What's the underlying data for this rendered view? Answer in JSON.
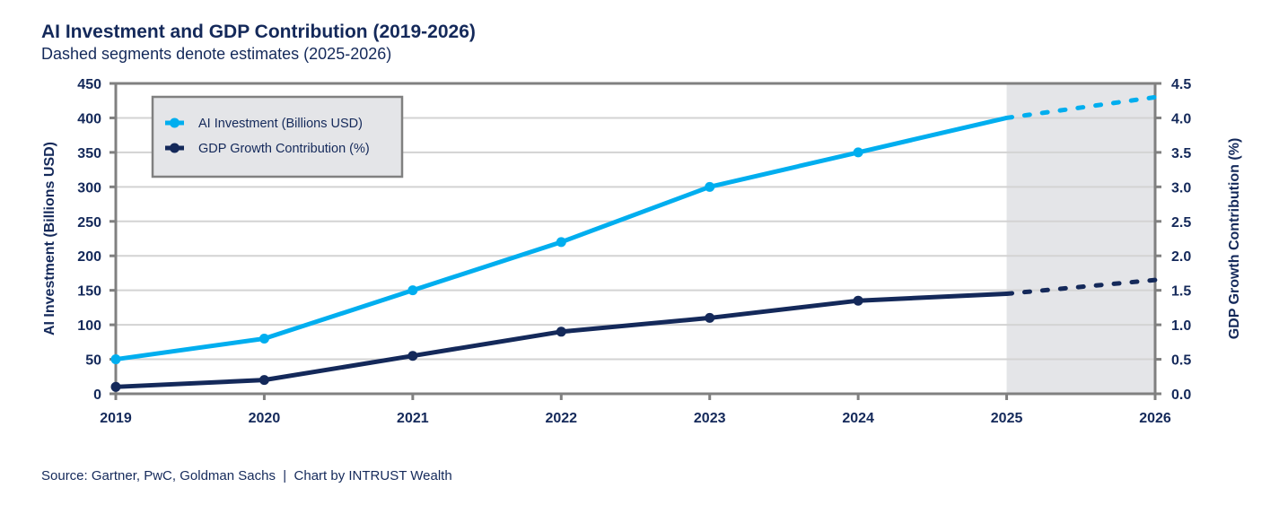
{
  "chart_data": {
    "type": "line",
    "title": "AI Investment and GDP Contribution (2019-2026)",
    "subtitle": "Dashed segments denote estimates (2025-2026)",
    "x": [
      2019,
      2020,
      2021,
      2022,
      2023,
      2024,
      2025,
      2026
    ],
    "xlim": [
      2019,
      2026
    ],
    "xticks": [
      "2019",
      "2020",
      "2021",
      "2022",
      "2023",
      "2024",
      "2025",
      "2026"
    ],
    "ylabel_left": "AI Investment (Billions USD)",
    "ylabel_right": "GDP Growth Contribution (%)",
    "ylim_left": [
      0,
      450
    ],
    "ylim_right": [
      0,
      4.5
    ],
    "yticks_left": [
      "0",
      "50",
      "100",
      "150",
      "200",
      "250",
      "300",
      "350",
      "400",
      "450"
    ],
    "yticks_right": [
      "0.0",
      "0.5",
      "1.0",
      "1.5",
      "2.0",
      "2.5",
      "3.0",
      "3.5",
      "4.0",
      "4.5"
    ],
    "grid": true,
    "legend_position": "top-left",
    "estimate_range": [
      2025,
      2026
    ],
    "series": [
      {
        "name": "AI Investment (Billions USD)",
        "axis": "left",
        "color": "#00aeef",
        "values": [
          50,
          80,
          150,
          220,
          300,
          350,
          400,
          430
        ]
      },
      {
        "name": "GDP Growth Contribution (%)",
        "axis": "right",
        "color": "#14295a",
        "values": [
          0.1,
          0.2,
          0.55,
          0.9,
          1.1,
          1.35,
          1.45,
          1.65
        ]
      }
    ]
  },
  "source": "Source: Gartner, PwC, Goldman Sachs  |  Chart by INTRUST Wealth"
}
